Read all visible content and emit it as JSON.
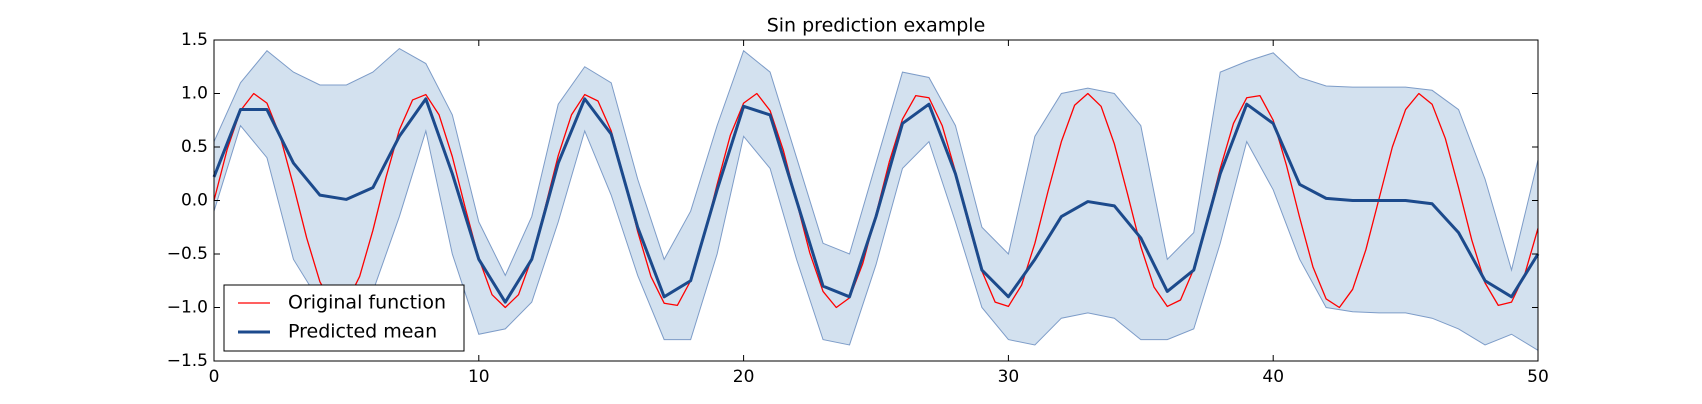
{
  "chart_data": {
    "type": "line",
    "title": "Sin prediction example",
    "xlim": [
      0,
      50
    ],
    "ylim": [
      -1.5,
      1.5
    ],
    "xticks": [
      0,
      10,
      20,
      30,
      40,
      50
    ],
    "yticks": [
      {
        "value": -1.5,
        "label": "−1.5"
      },
      {
        "value": -1.0,
        "label": "−1.0"
      },
      {
        "value": -0.5,
        "label": "−0.5"
      },
      {
        "value": 0.0,
        "label": "0.0"
      },
      {
        "value": 0.5,
        "label": "0.5"
      },
      {
        "value": 1.0,
        "label": "1.0"
      },
      {
        "value": 1.5,
        "label": "1.5"
      }
    ],
    "legend": "lower left",
    "band": {
      "color": "#d3e1ef",
      "edge": "#7d9cc8",
      "x": [
        0,
        1,
        2,
        3,
        4,
        5,
        6,
        7,
        8,
        9,
        10,
        11,
        12,
        13,
        14,
        15,
        16,
        17,
        18,
        19,
        20,
        21,
        22,
        23,
        24,
        25,
        26,
        27,
        28,
        29,
        30,
        31,
        32,
        33,
        34,
        35,
        36,
        37,
        38,
        39,
        40,
        41,
        42,
        43,
        44,
        45,
        46,
        47,
        48,
        49,
        50
      ],
      "upper": [
        0.55,
        1.1,
        1.4,
        1.2,
        1.08,
        1.08,
        1.2,
        1.42,
        1.28,
        0.8,
        -0.2,
        -0.7,
        -0.15,
        0.9,
        1.25,
        1.1,
        0.2,
        -0.55,
        -0.1,
        0.7,
        1.4,
        1.2,
        0.4,
        -0.4,
        -0.5,
        0.35,
        1.2,
        1.15,
        0.7,
        -0.25,
        -0.5,
        0.6,
        1.0,
        1.05,
        1.0,
        0.7,
        -0.55,
        -0.3,
        1.2,
        1.3,
        1.38,
        1.15,
        1.07,
        1.06,
        1.06,
        1.06,
        1.03,
        0.85,
        0.2,
        -0.65,
        0.38
      ],
      "lower": [
        -0.1,
        0.7,
        0.4,
        -0.55,
        -0.95,
        -1.05,
        -0.85,
        -0.15,
        0.65,
        -0.5,
        -1.25,
        -1.2,
        -0.95,
        -0.2,
        0.65,
        0.05,
        -0.7,
        -1.3,
        -1.3,
        -0.5,
        0.6,
        0.3,
        -0.55,
        -1.3,
        -1.35,
        -0.6,
        0.3,
        0.55,
        -0.2,
        -1.0,
        -1.3,
        -1.35,
        -1.1,
        -1.05,
        -1.1,
        -1.3,
        -1.3,
        -1.2,
        -0.4,
        0.55,
        0.1,
        -0.55,
        -1.0,
        -1.04,
        -1.05,
        -1.05,
        -1.1,
        -1.2,
        -1.35,
        -1.25,
        -1.4
      ]
    },
    "series": [
      {
        "name": "Original function",
        "color": "#ff0000",
        "width": 1.3,
        "x": [
          0,
          0.5,
          1,
          1.5,
          2,
          2.5,
          3,
          3.5,
          4,
          4.5,
          5,
          5.5,
          6,
          6.5,
          7,
          7.5,
          8,
          8.5,
          9,
          9.5,
          10,
          10.5,
          11,
          11.5,
          12,
          12.5,
          13,
          13.5,
          14,
          14.5,
          15,
          15.5,
          16,
          16.5,
          17,
          17.5,
          18,
          18.5,
          19,
          19.5,
          20,
          20.5,
          21,
          21.5,
          22,
          22.5,
          23,
          23.5,
          24,
          24.5,
          25,
          25.5,
          26,
          26.5,
          27,
          27.5,
          28,
          28.5,
          29,
          29.5,
          30,
          30.5,
          31,
          31.5,
          32,
          32.5,
          33,
          33.5,
          34,
          34.5,
          35,
          35.5,
          36,
          36.5,
          37,
          37.5,
          38,
          38.5,
          39,
          39.5,
          40,
          40.5,
          41,
          41.5,
          42,
          42.5,
          43,
          43.5,
          44,
          44.5,
          45,
          45.5,
          46,
          46.5,
          47,
          47.5,
          48,
          48.5,
          49,
          49.5,
          50
        ],
        "values": [
          0,
          0.48,
          0.84,
          1.0,
          0.91,
          0.6,
          0.14,
          -0.35,
          -0.76,
          -0.98,
          -0.96,
          -0.71,
          -0.28,
          0.22,
          0.66,
          0.94,
          0.99,
          0.8,
          0.41,
          -0.08,
          -0.54,
          -0.88,
          -1.0,
          -0.88,
          -0.54,
          -0.07,
          0.42,
          0.8,
          0.99,
          0.93,
          0.65,
          0.2,
          -0.29,
          -0.71,
          -0.96,
          -0.98,
          -0.75,
          -0.34,
          0.15,
          0.61,
          0.91,
          1.0,
          0.84,
          0.47,
          -0.01,
          -0.49,
          -0.85,
          -1.0,
          -0.91,
          -0.59,
          -0.13,
          0.36,
          0.76,
          0.98,
          0.96,
          0.7,
          0.27,
          -0.23,
          -0.66,
          -0.95,
          -0.99,
          -0.79,
          -0.4,
          0.09,
          0.55,
          0.89,
          1.0,
          0.88,
          0.53,
          0.06,
          -0.43,
          -0.81,
          -0.99,
          -0.93,
          -0.64,
          -0.19,
          0.3,
          0.72,
          0.96,
          0.98,
          0.75,
          0.33,
          -0.16,
          -0.62,
          -0.92,
          -1.0,
          -0.83,
          -0.46,
          0.02,
          0.5,
          0.85,
          1.0,
          0.9,
          0.58,
          0.12,
          -0.37,
          -0.77,
          -0.98,
          -0.95,
          -0.69,
          -0.26
        ]
      },
      {
        "name": "Predicted mean",
        "color": "#1c4a8c",
        "width": 3,
        "x": [
          0,
          1,
          2,
          3,
          4,
          5,
          6,
          7,
          8,
          9,
          10,
          11,
          12,
          13,
          14,
          15,
          16,
          17,
          18,
          19,
          20,
          21,
          22,
          23,
          24,
          25,
          26,
          27,
          28,
          29,
          30,
          31,
          32,
          33,
          34,
          35,
          36,
          37,
          38,
          39,
          40,
          41,
          42,
          43,
          44,
          45,
          46,
          47,
          48,
          49,
          50
        ],
        "values": [
          0.22,
          0.85,
          0.85,
          0.35,
          0.05,
          0.01,
          0.12,
          0.6,
          0.95,
          0.25,
          -0.55,
          -0.95,
          -0.55,
          0.35,
          0.95,
          0.62,
          -0.25,
          -0.9,
          -0.75,
          0.1,
          0.88,
          0.8,
          0.0,
          -0.8,
          -0.9,
          -0.15,
          0.72,
          0.9,
          0.25,
          -0.65,
          -0.9,
          -0.55,
          -0.15,
          -0.01,
          -0.05,
          -0.35,
          -0.85,
          -0.65,
          0.25,
          0.9,
          0.72,
          0.15,
          0.02,
          0.0,
          0.0,
          0.0,
          -0.03,
          -0.3,
          -0.75,
          -0.9,
          -0.5
        ]
      }
    ]
  }
}
